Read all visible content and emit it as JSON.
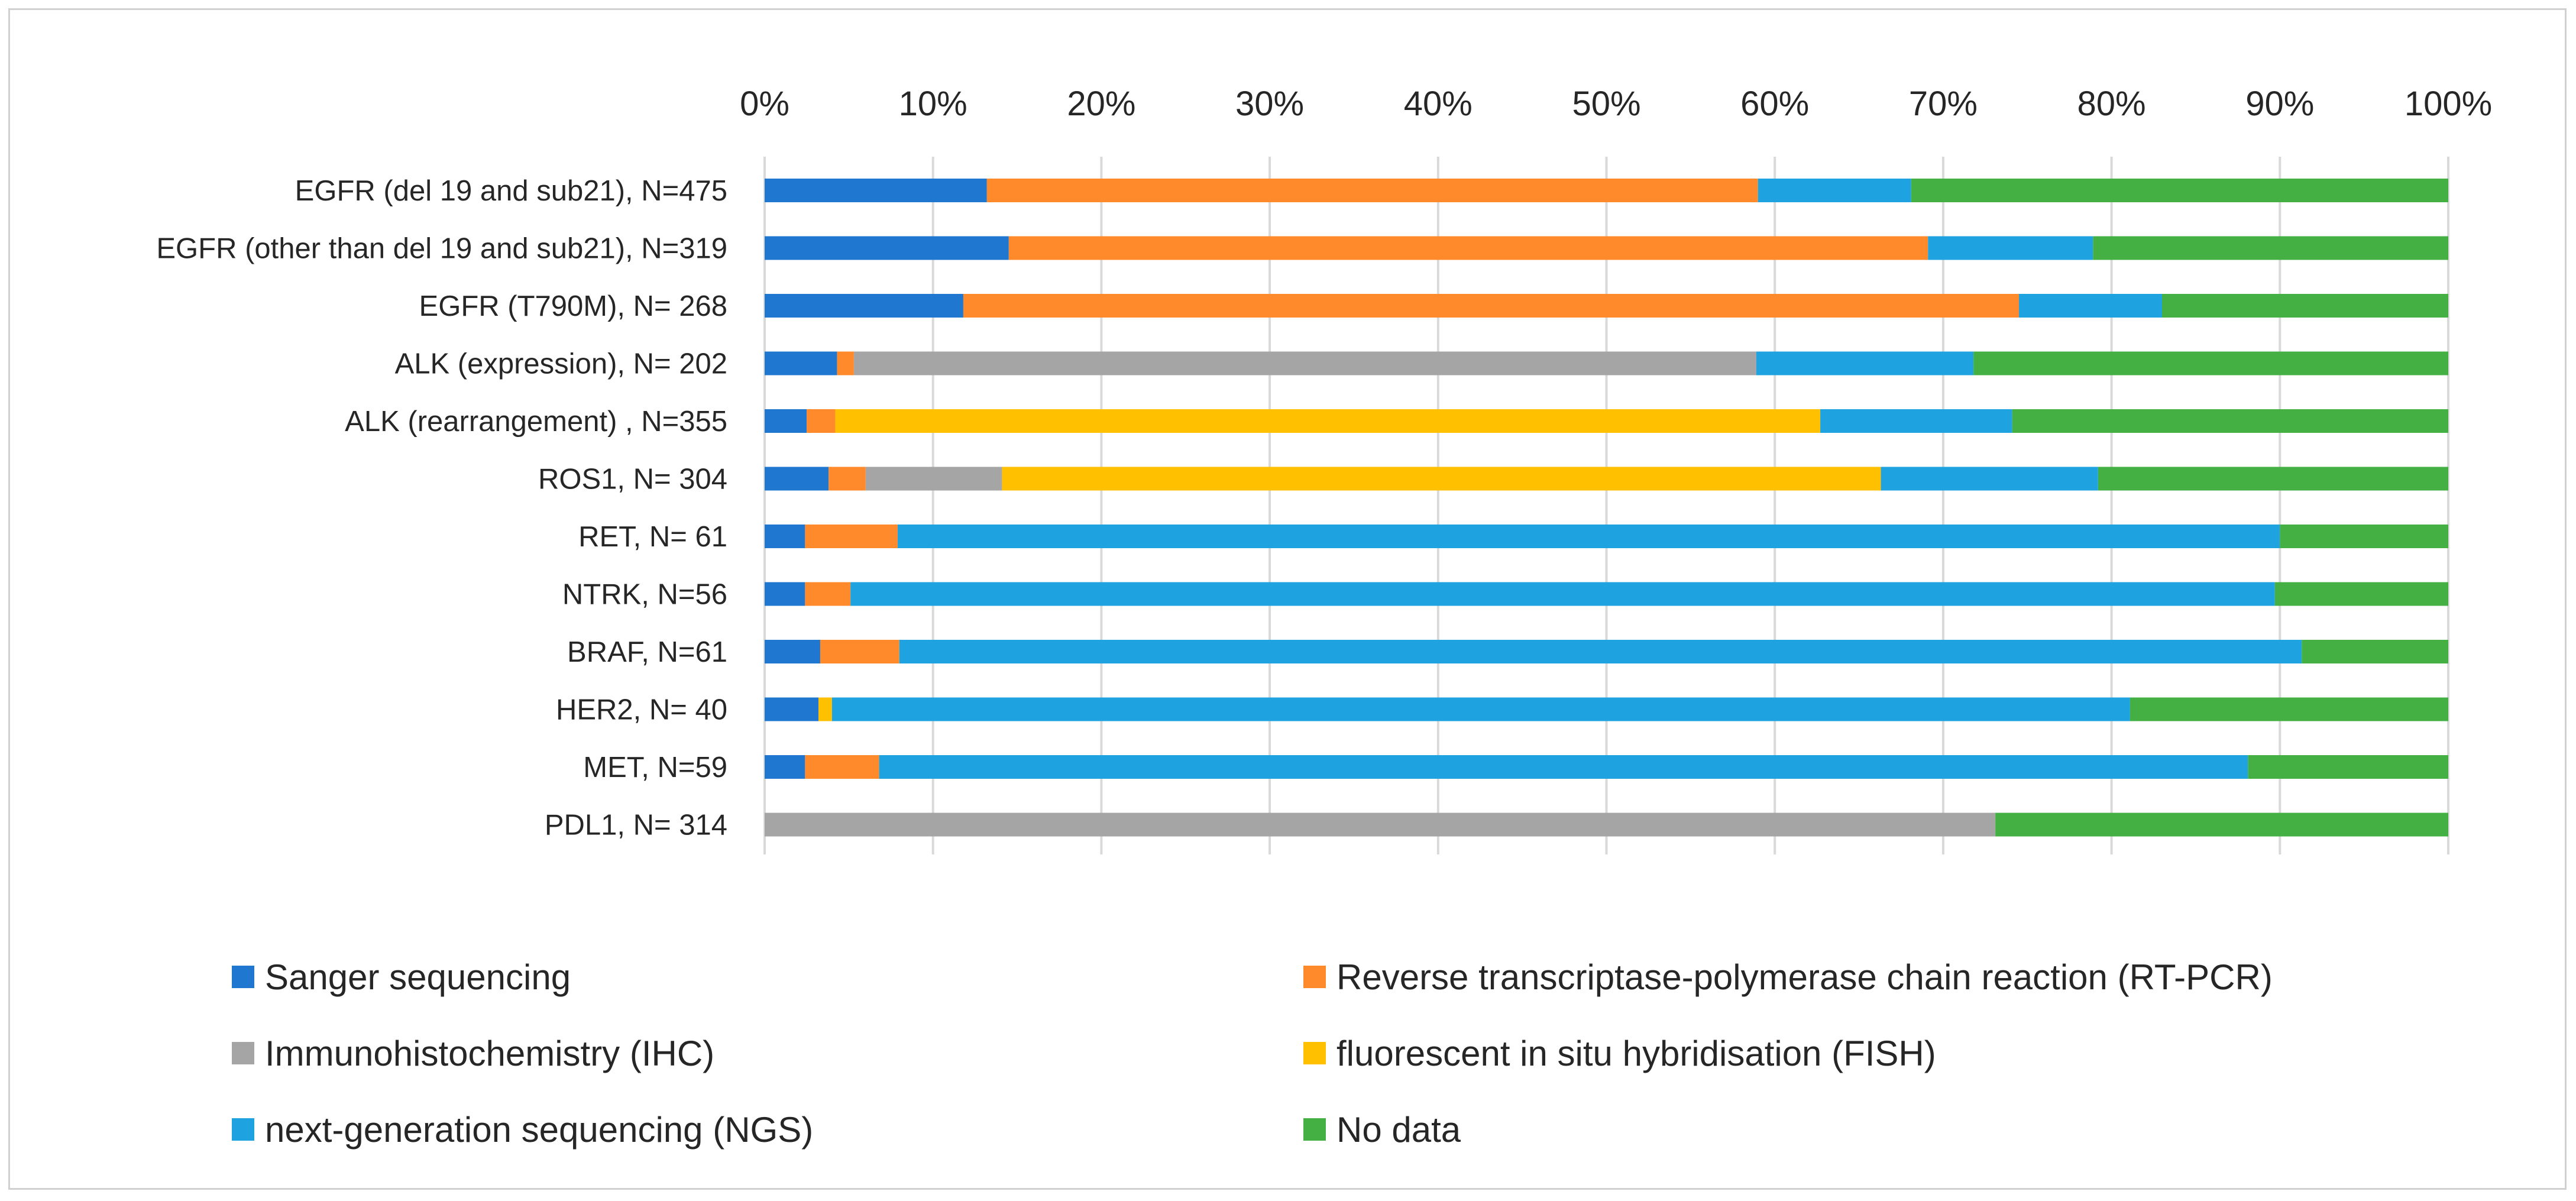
{
  "chart_data": {
    "type": "bar",
    "orientation": "horizontal",
    "stacked": true,
    "percent": true,
    "categories": [
      "EGFR (del 19 and sub21), N=475",
      "EGFR (other than del 19 and sub21), N=319",
      "EGFR (T790M), N= 268",
      "ALK (expression), N= 202",
      "ALK (rearrangement) , N=355",
      "ROS1, N= 304",
      "RET, N= 61",
      "NTRK, N=56",
      "BRAF, N=61",
      "HER2, N= 40",
      "MET, N=59",
      "PDL1, N= 314"
    ],
    "series": [
      {
        "name": "Sanger sequencing",
        "color": "#1f77d0",
        "values": [
          13.2,
          14.5,
          11.8,
          4.3,
          2.5,
          3.8,
          2.4,
          2.4,
          3.3,
          3.2,
          2.4,
          0
        ]
      },
      {
        "name": "Reverse transcriptase-polymerase chain reaction (RT-PCR)",
        "color": "#ff8a2b",
        "values": [
          45.8,
          54.6,
          62.7,
          1.0,
          1.7,
          2.2,
          5.5,
          2.7,
          4.7,
          0,
          4.4,
          0
        ]
      },
      {
        "name": "Immunohistochemistry (IHC)",
        "color": "#a5a5a5",
        "values": [
          0,
          0,
          0,
          53.6,
          0,
          8.1,
          0,
          0,
          0,
          0,
          0,
          73.1
        ]
      },
      {
        "name": "fluorescent in situ hybridisation (FISH)",
        "color": "#ffc000",
        "values": [
          0,
          0,
          0,
          0,
          58.5,
          52.2,
          0,
          0,
          0,
          0.8,
          0,
          0
        ]
      },
      {
        "name": "next‐generation sequencing (NGS)",
        "color": "#1ea2e0",
        "values": [
          9.1,
          9.8,
          8.5,
          12.9,
          11.4,
          12.9,
          82.1,
          84.6,
          83.3,
          77.1,
          81.3,
          0
        ]
      },
      {
        "name": "No data",
        "color": "#44b044",
        "values": [
          31.9,
          21.1,
          17.0,
          28.2,
          25.9,
          20.8,
          10.0,
          10.3,
          8.7,
          18.9,
          11.9,
          26.9
        ]
      }
    ],
    "xticks": [
      "0%",
      "10%",
      "20%",
      "30%",
      "40%",
      "50%",
      "60%",
      "70%",
      "80%",
      "90%",
      "100%"
    ],
    "xlim": [
      0,
      100
    ],
    "grid": true,
    "xaxis_position": "top",
    "legend_position": "bottom",
    "title": "",
    "xlabel": "",
    "ylabel": ""
  }
}
